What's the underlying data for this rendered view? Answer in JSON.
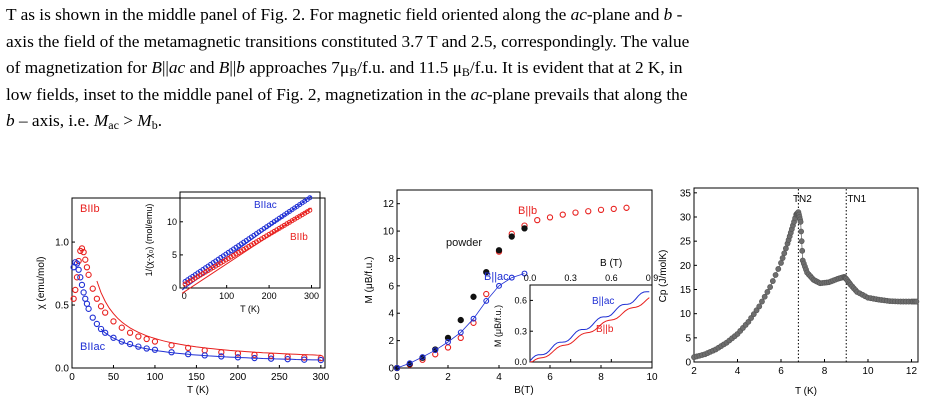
{
  "paragraph": {
    "l1_a": "T as is shown in the middle panel of Fig. 2. For magnetic field oriented along the ",
    "l1_ac": "ac",
    "l1_b": "-plane and ",
    "l1_bi": "b",
    "l1_c": " -",
    "l2": "axis the field of the metamagnetic transitions constituted 3.7 T and 2.5, correspondingly. The value",
    "l3_a": "of magnetization for ",
    "l3_B1": "B",
    "l3_p1": "||",
    "l3_ac": "ac",
    "l3_m": " and ",
    "l3_B2": "B",
    "l3_p2": "||",
    "l3_b": "b",
    "l3_n": " approaches 7μ",
    "l3_sub1": "B",
    "l3_o": "/f.u. and 11.5 μ",
    "l3_sub2": "B",
    "l3_q": "/f.u. It is evident that at 2 K, in",
    "l4_a": "low fields, inset to the middle panel of Fig. 2, magnetization in the ",
    "l4_ac": "ac",
    "l4_b": "-plane prevails that along the",
    "l5_b": "b",
    "l5_m": " – axis, i.e. ",
    "l5_M1": "M",
    "l5_s1": "ac",
    "l5_gt": " > ",
    "l5_M2": "M",
    "l5_s2": "b",
    "l5_end": "."
  },
  "panel_chi": {
    "ylabel": "χ (emu/mol)",
    "xlabel": "T (K)",
    "xticks": [
      "0",
      "50",
      "100",
      "150",
      "200",
      "250",
      "300"
    ],
    "yticks": [
      "0.0",
      "0.5",
      "1.0"
    ],
    "label_b": "BIIb",
    "label_ac": "BIIac",
    "inset": {
      "ylabel": "1/(χ-χ₀) (mol/emu)",
      "xlabel": "T (K)",
      "xticks": [
        "0",
        "100",
        "200",
        "300"
      ],
      "yticks": [
        "0",
        "5",
        "10"
      ],
      "label_ac": "BIIac",
      "label_b": "BIIb"
    }
  },
  "panel_m": {
    "ylabel": "M (μB/f.u.)",
    "xlabel": "B(T)",
    "xticks": [
      "0",
      "2",
      "4",
      "6",
      "8",
      "10"
    ],
    "yticks": [
      "0",
      "2",
      "4",
      "6",
      "8",
      "10",
      "12"
    ],
    "label_b": "B||b",
    "label_powder": "powder",
    "label_ac": "B||ac",
    "inset": {
      "xlabel": "B  (T)",
      "xticks": [
        "0.0",
        "0.3",
        "0.6",
        "0.9"
      ],
      "yticks": [
        "0.0",
        "0.3",
        "0.6"
      ],
      "ylabel": "M (μB/f.u.)",
      "label_ac": "B||ac",
      "label_b": "B||b"
    }
  },
  "panel_cp": {
    "ylabel": "Cp (J/molK)",
    "xlabel": "T (K)",
    "xticks": [
      "2",
      "4",
      "6",
      "8",
      "10",
      "12"
    ],
    "yticks": [
      "0",
      "5",
      "10",
      "15",
      "20",
      "25",
      "30",
      "35"
    ],
    "label_tn2": "TN2",
    "label_tn1": "TN1"
  },
  "colors": {
    "red": "#e8201e",
    "blue": "#1f2fd4",
    "gray": "#6e6e6e",
    "black": "#111111"
  },
  "chart_data": [
    {
      "type": "scatter",
      "panel": "left",
      "xlabel": "T (K)",
      "ylabel": "χ (emu/mol)",
      "xlim": [
        0,
        305
      ],
      "ylim": [
        0,
        1.35
      ],
      "series": [
        {
          "name": "BIIb",
          "color": "#e8201e",
          "x": [
            2,
            4,
            6,
            8,
            10,
            12,
            14,
            16,
            18,
            20,
            25,
            30,
            35,
            40,
            50,
            60,
            70,
            80,
            90,
            100,
            120,
            140,
            160,
            180,
            200,
            220,
            240,
            260,
            280,
            300
          ],
          "y": [
            0.55,
            0.62,
            0.72,
            0.85,
            0.93,
            0.95,
            0.92,
            0.86,
            0.8,
            0.74,
            0.63,
            0.55,
            0.49,
            0.44,
            0.37,
            0.32,
            0.28,
            0.25,
            0.23,
            0.21,
            0.18,
            0.16,
            0.14,
            0.125,
            0.115,
            0.105,
            0.097,
            0.09,
            0.083,
            0.078
          ]
        },
        {
          "name": "BIIac",
          "color": "#1f2fd4",
          "x": [
            2,
            4,
            6,
            8,
            10,
            12,
            14,
            16,
            18,
            20,
            25,
            30,
            35,
            40,
            50,
            60,
            70,
            80,
            90,
            100,
            120,
            140,
            160,
            180,
            200,
            220,
            240,
            260,
            280,
            300
          ],
          "y": [
            0.8,
            0.84,
            0.83,
            0.78,
            0.72,
            0.66,
            0.6,
            0.55,
            0.51,
            0.47,
            0.4,
            0.35,
            0.31,
            0.28,
            0.24,
            0.21,
            0.19,
            0.17,
            0.155,
            0.145,
            0.125,
            0.11,
            0.1,
            0.092,
            0.085,
            0.079,
            0.074,
            0.07,
            0.066,
            0.063
          ]
        }
      ]
    },
    {
      "type": "scatter",
      "panel": "middle",
      "xlabel": "B(T)",
      "ylabel": "M (μB/f.u.)",
      "xlim": [
        0,
        10
      ],
      "ylim": [
        0,
        13
      ],
      "series": [
        {
          "name": "B||b",
          "color": "#e8201e",
          "x": [
            0,
            0.5,
            1,
            1.5,
            2,
            2.5,
            3,
            3.5,
            4,
            4.5,
            5,
            5.5,
            6,
            6.5,
            7,
            7.5,
            8,
            8.5,
            9
          ],
          "y": [
            0,
            0.25,
            0.6,
            1.0,
            1.5,
            2.2,
            3.3,
            5.4,
            8.5,
            9.8,
            10.4,
            10.8,
            11.0,
            11.2,
            11.35,
            11.45,
            11.55,
            11.62,
            11.7
          ]
        },
        {
          "name": "powder",
          "color": "#111111",
          "x": [
            0,
            0.5,
            1,
            1.5,
            2,
            2.5,
            3,
            3.5,
            4,
            4.5,
            5
          ],
          "y": [
            0,
            0.3,
            0.75,
            1.35,
            2.2,
            3.5,
            5.2,
            7.0,
            8.6,
            9.6,
            10.2
          ]
        },
        {
          "name": "B||ac",
          "color": "#1f2fd4",
          "x": [
            0,
            0.5,
            1,
            1.5,
            2,
            2.5,
            3,
            3.5,
            4,
            4.5,
            5
          ],
          "y": [
            0,
            0.35,
            0.8,
            1.3,
            1.9,
            2.6,
            3.6,
            4.9,
            6.0,
            6.6,
            6.9
          ]
        }
      ]
    },
    {
      "type": "scatter",
      "panel": "right",
      "xlabel": "T (K)",
      "ylabel": "Cp (J/molK)",
      "xlim": [
        2,
        12.3
      ],
      "ylim": [
        0,
        36
      ],
      "series": [
        {
          "name": "Cp",
          "x": [
            2,
            2.5,
            3,
            3.5,
            4,
            4.5,
            5,
            5.5,
            6,
            6.3,
            6.5,
            6.7,
            6.8,
            6.9,
            7.0,
            7.2,
            7.5,
            7.8,
            8.2,
            8.6,
            8.9,
            9.0,
            9.2,
            9.5,
            10,
            10.5,
            11,
            11.5,
            12,
            12.3
          ],
          "y": [
            1,
            1.6,
            2.6,
            4,
            5.8,
            8.3,
            11.5,
            15.5,
            20.5,
            24.5,
            27.5,
            30.5,
            31,
            29,
            21,
            18.5,
            17,
            16.3,
            16.5,
            17.2,
            17.6,
            17.2,
            16,
            14.5,
            13.3,
            12.9,
            12.6,
            12.5,
            12.5,
            12.5
          ]
        }
      ],
      "annotations": [
        {
          "label": "TN2",
          "x": 6.8
        },
        {
          "label": "TN1",
          "x": 9.0
        }
      ]
    }
  ]
}
